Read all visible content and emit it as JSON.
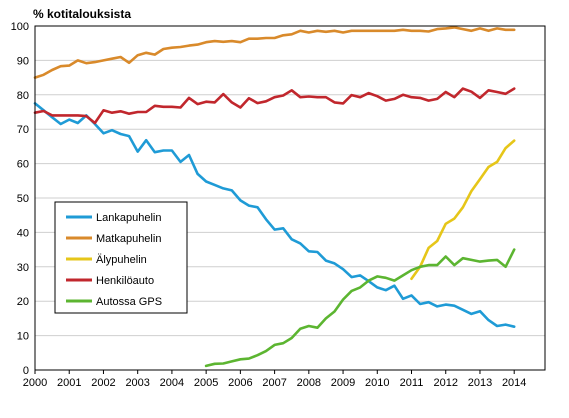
{
  "chart_data": {
    "type": "line",
    "title": "",
    "ylabel": "% kotitalouksista",
    "xlabel": "",
    "ylim": [
      0,
      100
    ],
    "xlim": [
      2000,
      2014.9
    ],
    "yticks": [
      0,
      10,
      20,
      30,
      40,
      50,
      60,
      70,
      80,
      90,
      100
    ],
    "xticks": [
      2000,
      2001,
      2002,
      2003,
      2004,
      2005,
      2006,
      2007,
      2008,
      2009,
      2010,
      2011,
      2012,
      2013,
      2014
    ],
    "grid": "horizontal",
    "legend_position": "center-left",
    "series": [
      {
        "name": "Lankapuhelin",
        "color": "#1f9bd6",
        "x": [
          2000,
          2000.25,
          2000.5,
          2000.75,
          2001,
          2001.25,
          2001.5,
          2001.75,
          2002,
          2002.25,
          2002.5,
          2002.75,
          2003,
          2003.25,
          2003.5,
          2003.75,
          2004,
          2004.25,
          2004.5,
          2004.75,
          2005,
          2005.25,
          2005.5,
          2005.75,
          2006,
          2006.25,
          2006.5,
          2006.75,
          2007,
          2007.25,
          2007.5,
          2007.75,
          2008,
          2008.25,
          2008.5,
          2008.75,
          2009,
          2009.25,
          2009.5,
          2009.75,
          2010,
          2010.25,
          2010.5,
          2010.75,
          2011,
          2011.25,
          2011.5,
          2011.75,
          2012,
          2012.25,
          2012.5,
          2012.75,
          2013,
          2013.25,
          2013.5,
          2013.75,
          2014
        ],
        "y": [
          77.5,
          75.5,
          73.5,
          71.5,
          72.8,
          71.8,
          74,
          71.5,
          68.8,
          69.7,
          68.6,
          68,
          63.5,
          66.8,
          63.3,
          63.8,
          63.8,
          60.5,
          62.5,
          57,
          54.8,
          53.8,
          52.8,
          52.2,
          49.3,
          47.8,
          47.3,
          43.8,
          40.8,
          41.2,
          38,
          36.8,
          34.5,
          34.3,
          31.8,
          31,
          29.3,
          27,
          27.5,
          25.8,
          24,
          23.2,
          24.5,
          20.7,
          21.7,
          19.2,
          19.7,
          18.5,
          19,
          18.7,
          17.5,
          16.3,
          17.1,
          14.5,
          12.8,
          13.2,
          12.6
        ]
      },
      {
        "name": "Matkapuhelin",
        "color": "#d98a2b",
        "x": [
          2000,
          2000.25,
          2000.5,
          2000.75,
          2001,
          2001.25,
          2001.5,
          2001.75,
          2002,
          2002.25,
          2002.5,
          2002.75,
          2003,
          2003.25,
          2003.5,
          2003.75,
          2004,
          2004.25,
          2004.5,
          2004.75,
          2005,
          2005.25,
          2005.5,
          2005.75,
          2006,
          2006.25,
          2006.5,
          2006.75,
          2007,
          2007.25,
          2007.5,
          2007.75,
          2008,
          2008.25,
          2008.5,
          2008.75,
          2009,
          2009.25,
          2009.5,
          2009.75,
          2010,
          2010.25,
          2010.5,
          2010.75,
          2011,
          2011.25,
          2011.5,
          2011.75,
          2012,
          2012.25,
          2012.5,
          2012.75,
          2013,
          2013.25,
          2013.5,
          2013.75,
          2014
        ],
        "y": [
          85,
          85.8,
          87.2,
          88.3,
          88.5,
          90,
          89.2,
          89.5,
          90,
          90.5,
          91,
          89.3,
          91.5,
          92.2,
          91.7,
          93.3,
          93.7,
          93.9,
          94.3,
          94.6,
          95.3,
          95.6,
          95.4,
          95.6,
          95.3,
          96.3,
          96.3,
          96.5,
          96.5,
          97.3,
          97.6,
          98.6,
          98.1,
          98.6,
          98.3,
          98.6,
          98.1,
          98.6,
          98.6,
          98.6,
          98.6,
          98.6,
          98.6,
          98.9,
          98.6,
          98.6,
          98.4,
          99.1,
          99.3,
          99.6,
          99.1,
          98.6,
          99.3,
          98.6,
          99.3,
          98.9,
          98.9
        ]
      },
      {
        "name": "Älypuhelin",
        "color": "#e6c619",
        "x": [
          2011,
          2011.25,
          2011.5,
          2011.75,
          2012,
          2012.25,
          2012.5,
          2012.75,
          2013,
          2013.25,
          2013.5,
          2013.75,
          2014
        ],
        "y": [
          26.5,
          30,
          35.5,
          37.5,
          42.5,
          44,
          47.3,
          52,
          55.5,
          59,
          60.5,
          64.5,
          66.7
        ]
      },
      {
        "name": "Henkilöauto",
        "color": "#c1272d",
        "x": [
          2000,
          2000.25,
          2000.5,
          2000.75,
          2001,
          2001.25,
          2001.5,
          2001.75,
          2002,
          2002.25,
          2002.5,
          2002.75,
          2003,
          2003.25,
          2003.5,
          2003.75,
          2004,
          2004.25,
          2004.5,
          2004.75,
          2005,
          2005.25,
          2005.5,
          2005.75,
          2006,
          2006.25,
          2006.5,
          2006.75,
          2007,
          2007.25,
          2007.5,
          2007.75,
          2008,
          2008.25,
          2008.5,
          2008.75,
          2009,
          2009.25,
          2009.5,
          2009.75,
          2010,
          2010.25,
          2010.5,
          2010.75,
          2011,
          2011.25,
          2011.5,
          2011.75,
          2012,
          2012.25,
          2012.5,
          2012.75,
          2013,
          2013.25,
          2013.5,
          2013.75,
          2014
        ],
        "y": [
          74.8,
          75.3,
          74,
          74,
          74,
          74,
          73.8,
          71.8,
          75.5,
          74.8,
          75.2,
          74.5,
          75,
          75,
          76.8,
          76.5,
          76.5,
          76.3,
          79.1,
          77.3,
          78,
          77.8,
          80.2,
          77.8,
          76.3,
          79,
          77.6,
          78.1,
          79.3,
          79.8,
          81.3,
          79.3,
          79.5,
          79.3,
          79.3,
          77.8,
          77.5,
          79.9,
          79.3,
          80.5,
          79.6,
          78.3,
          78.8,
          80,
          79.3,
          79.1,
          78.3,
          78.8,
          80.8,
          79.3,
          81.8,
          80.9,
          79.1,
          81.3,
          80.8,
          80.3,
          81.8
        ]
      },
      {
        "name": "Autossa GPS",
        "color": "#5cb531",
        "x": [
          2005,
          2005.25,
          2005.5,
          2005.75,
          2006,
          2006.25,
          2006.5,
          2006.75,
          2007,
          2007.25,
          2007.5,
          2007.75,
          2008,
          2008.25,
          2008.5,
          2008.75,
          2009,
          2009.25,
          2009.5,
          2009.75,
          2010,
          2010.25,
          2010.5,
          2010.75,
          2011,
          2011.25,
          2011.5,
          2011.75,
          2012,
          2012.25,
          2012.5,
          2012.75,
          2013,
          2013.25,
          2013.5,
          2013.75,
          2014
        ],
        "y": [
          1.2,
          1.8,
          1.9,
          2.5,
          3.1,
          3.3,
          4.3,
          5.5,
          7.3,
          7.8,
          9.3,
          12,
          12.8,
          12.3,
          15,
          17,
          20.5,
          23,
          24,
          26,
          27.2,
          26.8,
          26,
          27.5,
          29,
          30,
          30.5,
          30.5,
          33,
          30.5,
          32.5,
          32,
          31.5,
          31.8,
          32,
          30,
          35
        ]
      }
    ]
  }
}
